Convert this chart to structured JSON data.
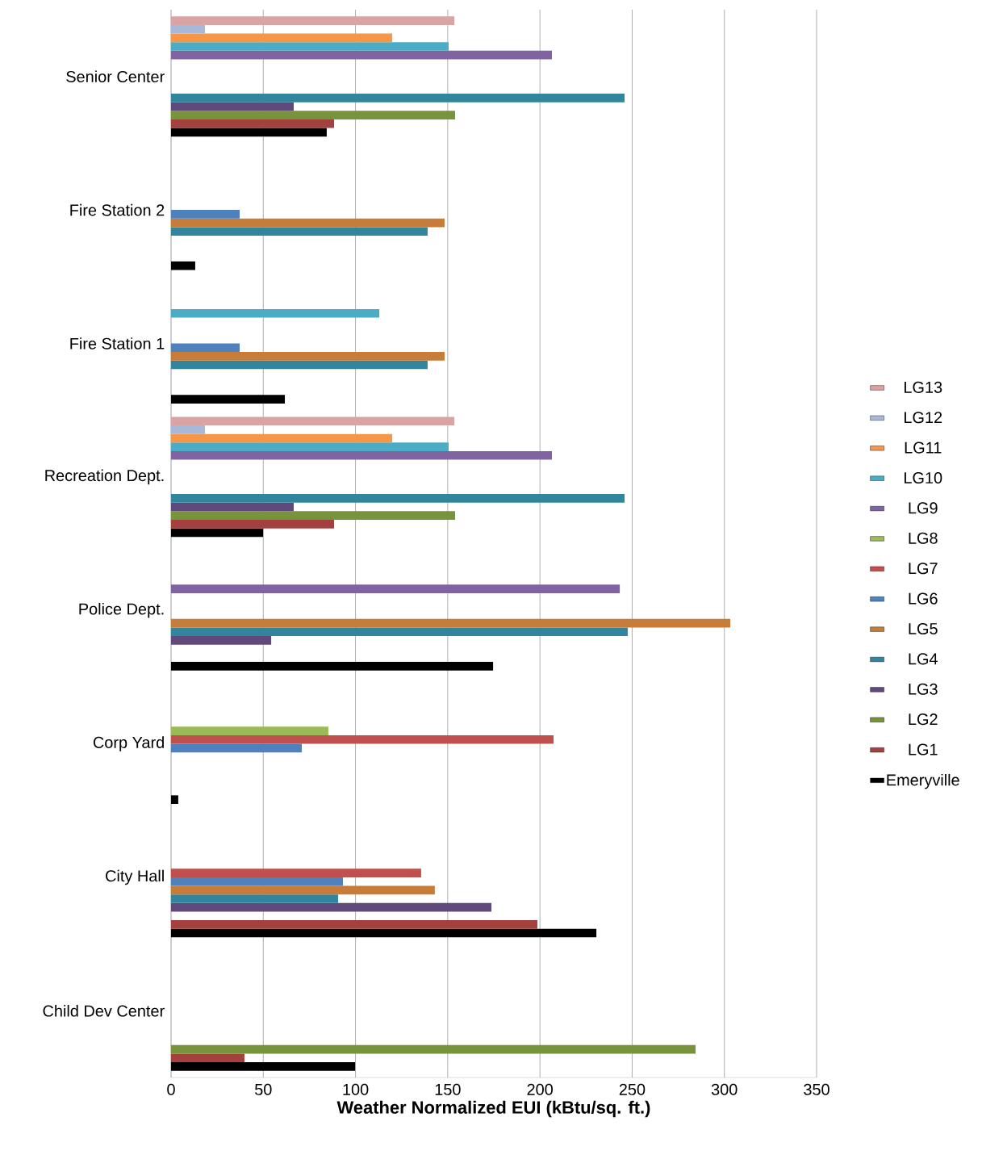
{
  "chart_data": {
    "type": "bar",
    "orientation": "horizontal",
    "xlabel": "Weather Normalized EUI (kBtu/sq. ft.)",
    "categories": [
      "Senior Center",
      "Fire Station 2",
      "Fire Station 1",
      "Recreation Dept.",
      "Police Dept.",
      "Corp Yard",
      "City Hall",
      "Child Dev Center"
    ],
    "xlim": [
      0,
      350
    ],
    "xticks": [
      0,
      50,
      100,
      150,
      200,
      250,
      300,
      350
    ],
    "grid": "x",
    "legend": "right",
    "series": [
      {
        "name": "Emeryville",
        "color": "#000000",
        "values": [
          84.4,
          13.1,
          61.7,
          49.9,
          174.6,
          3.9,
          230.6,
          99.8
        ]
      },
      {
        "name": "LG1",
        "color": "#a4403d",
        "values": [
          88.4,
          null,
          null,
          88.4,
          null,
          null,
          198.6,
          39.8
        ]
      },
      {
        "name": "LG2",
        "color": "#77933c",
        "values": [
          154,
          null,
          null,
          154,
          null,
          null,
          null,
          284.4
        ]
      },
      {
        "name": "LG3",
        "color": "#604a7b",
        "values": [
          66.5,
          null,
          null,
          66.5,
          54.3,
          null,
          173.7,
          null
        ]
      },
      {
        "name": "LG4",
        "color": "#31859c",
        "values": [
          245.9,
          139.1,
          139.1,
          245.9,
          247.6,
          null,
          90.6,
          null
        ]
      },
      {
        "name": "LG5",
        "color": "#c77c3a",
        "values": [
          null,
          148.3,
          148.3,
          null,
          303.2,
          null,
          143,
          null
        ]
      },
      {
        "name": "LG6",
        "color": "#4f81bd",
        "values": [
          null,
          37.2,
          37.2,
          null,
          null,
          70.9,
          93.2,
          null
        ]
      },
      {
        "name": "LG7",
        "color": "#c0504d",
        "values": [
          null,
          null,
          null,
          null,
          null,
          207.4,
          135.6,
          null
        ]
      },
      {
        "name": "LG8",
        "color": "#9bbb59",
        "values": [
          null,
          null,
          null,
          null,
          null,
          85.3,
          null,
          null
        ]
      },
      {
        "name": "LG9",
        "color": "#8064a2",
        "values": [
          206.5,
          null,
          null,
          206.5,
          243.3,
          null,
          null,
          null
        ]
      },
      {
        "name": "LG10",
        "color": "#4bacc6",
        "values": [
          150.5,
          null,
          112.9,
          150.5,
          null,
          null,
          null,
          null
        ]
      },
      {
        "name": "LG11",
        "color": "#f79646",
        "values": [
          119.9,
          null,
          null,
          119.9,
          null,
          null,
          null,
          null
        ]
      },
      {
        "name": "LG12",
        "color": "#a7b9d9",
        "values": [
          18.4,
          null,
          null,
          18.4,
          null,
          null,
          null,
          null
        ]
      },
      {
        "name": "LG13",
        "color": "#d9a4a3",
        "values": [
          153.6,
          null,
          null,
          153.6,
          null,
          null,
          null,
          null
        ]
      }
    ]
  }
}
